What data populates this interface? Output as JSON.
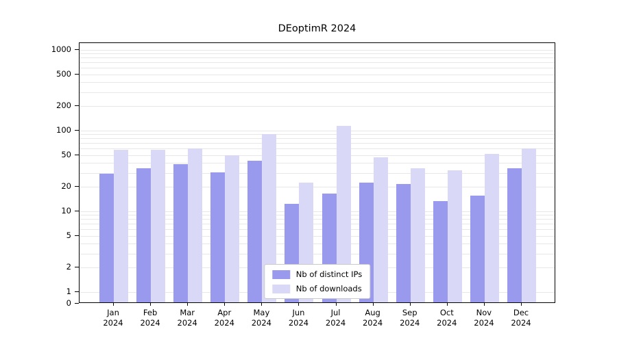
{
  "chart_data": {
    "type": "bar",
    "title": "DEoptimR 2024",
    "categories": [
      "Jan 2024",
      "Feb 2024",
      "Mar 2024",
      "Apr 2024",
      "May 2024",
      "Jun 2024",
      "Jul 2024",
      "Aug 2024",
      "Sep 2024",
      "Oct 2024",
      "Nov 2024",
      "Dec 2024"
    ],
    "series": [
      {
        "name": "Nb of distinct IPs",
        "color": "#9999ee",
        "values": [
          28,
          33,
          37,
          29,
          41,
          12,
          16,
          22,
          21,
          13,
          15,
          33
        ]
      },
      {
        "name": "Nb of downloads",
        "color": "#d9d9f7",
        "values": [
          56,
          56,
          58,
          48,
          88,
          22,
          110,
          45,
          33,
          31,
          50,
          58
        ]
      }
    ],
    "yticks": [
      0,
      1,
      2,
      5,
      10,
      20,
      50,
      100,
      200,
      500,
      1000
    ],
    "yscale": "log",
    "ylim": [
      0,
      1200
    ],
    "xlabel": "",
    "ylabel": "",
    "grid": true,
    "grid_color": "#e7e7e7",
    "axis_color": "#000000",
    "background_color": "#ffffff",
    "legend_position": "bottom-center"
  }
}
